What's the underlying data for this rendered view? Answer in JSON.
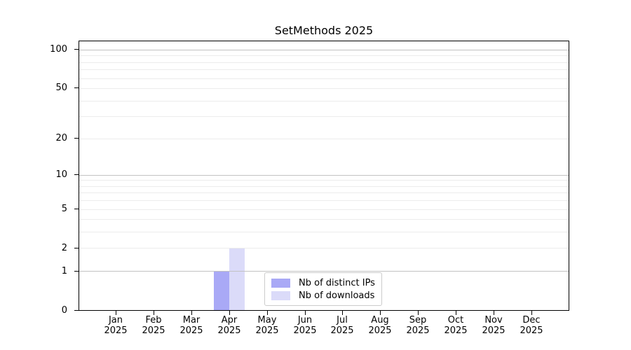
{
  "figure": {
    "title": "SetMethods 2025"
  },
  "chart_data": {
    "type": "bar",
    "title": "SetMethods 2025",
    "categories": [
      "Jan",
      "Feb",
      "Mar",
      "Apr",
      "May",
      "Jun",
      "Jul",
      "Aug",
      "Sep",
      "Oct",
      "Nov",
      "Dec"
    ],
    "category_year": "2025",
    "series": [
      {
        "name": "Nb of distinct IPs",
        "color": "#a9a9f6",
        "values": [
          0,
          0,
          0,
          1,
          0,
          0,
          0,
          0,
          0,
          0,
          0,
          0
        ]
      },
      {
        "name": "Nb of downloads",
        "color": "#dbdbf9",
        "values": [
          0,
          0,
          0,
          2,
          0,
          0,
          0,
          0,
          0,
          0,
          0,
          0
        ]
      }
    ],
    "xlabel": "",
    "ylabel": "",
    "yscale": "log1p",
    "ylim": [
      0,
      116
    ],
    "ytick_values": [
      100,
      50,
      20,
      10,
      5,
      2,
      1,
      0
    ],
    "ytick_labels": [
      "100",
      "50",
      "20",
      "10",
      "5",
      "2",
      "1",
      "0"
    ],
    "grid": "both",
    "grid_major_values": [
      1,
      10,
      100
    ],
    "grid_minor_values": [
      2,
      3,
      4,
      5,
      6,
      7,
      8,
      9,
      20,
      30,
      40,
      50,
      60,
      70,
      80,
      90
    ],
    "legend_position": "lower center inside",
    "colors": {
      "background": "#ffffff",
      "spine": "#000000",
      "text": "#000000",
      "grid_major": "#c2c2c2",
      "grid_minor": "#ececec",
      "legend_border": "#cccccc"
    }
  }
}
